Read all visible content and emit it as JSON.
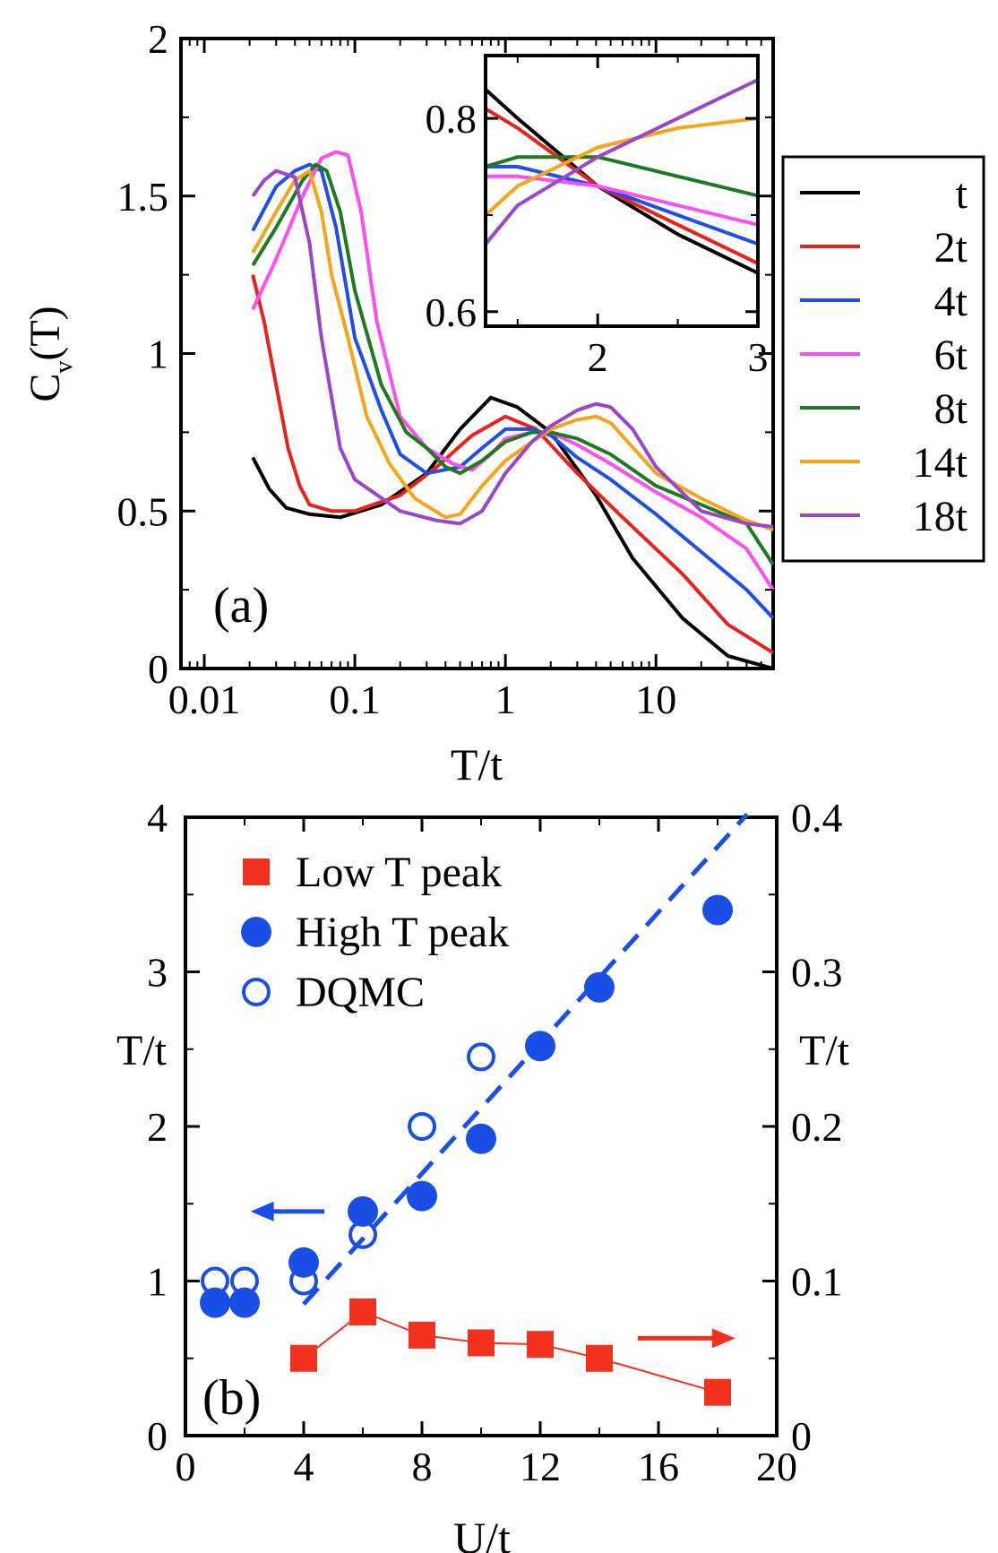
{
  "chart_data": [
    {
      "panel": "a",
      "type": "line",
      "panel_label": "(a)",
      "xlabel": "T/t",
      "ylabel_main": "C",
      "ylabel_sub": "v",
      "ylabel_tail": "(T)",
      "xscale": "log",
      "xlim": [
        0.007,
        60
      ],
      "ylim": [
        0,
        2
      ],
      "xticks": [
        {
          "v": 0.01,
          "label": "0.01"
        },
        {
          "v": 0.1,
          "label": "0.1"
        },
        {
          "v": 1,
          "label": "1"
        },
        {
          "v": 10,
          "label": "10"
        }
      ],
      "yticks": [
        {
          "v": 0,
          "label": "0"
        },
        {
          "v": 0.5,
          "label": "0.5"
        },
        {
          "v": 1,
          "label": "1"
        },
        {
          "v": 1.5,
          "label": "1.5"
        },
        {
          "v": 2,
          "label": "2"
        }
      ],
      "legend_position": "outside-right",
      "series": [
        {
          "name": "t",
          "color": "#000000",
          "points": [
            [
              0.021,
              0.67
            ],
            [
              0.027,
              0.57
            ],
            [
              0.035,
              0.51
            ],
            [
              0.05,
              0.49
            ],
            [
              0.08,
              0.48
            ],
            [
              0.15,
              0.52
            ],
            [
              0.3,
              0.62
            ],
            [
              0.5,
              0.76
            ],
            [
              0.8,
              0.86
            ],
            [
              1.2,
              0.83
            ],
            [
              2,
              0.75
            ],
            [
              4,
              0.55
            ],
            [
              7,
              0.35
            ],
            [
              15,
              0.16
            ],
            [
              30,
              0.04
            ],
            [
              60,
              0.0
            ]
          ]
        },
        {
          "name": "2t",
          "color": "#e8231c",
          "points": [
            [
              0.021,
              1.25
            ],
            [
              0.025,
              1.1
            ],
            [
              0.03,
              0.9
            ],
            [
              0.036,
              0.7
            ],
            [
              0.043,
              0.58
            ],
            [
              0.05,
              0.52
            ],
            [
              0.07,
              0.5
            ],
            [
              0.1,
              0.5
            ],
            [
              0.2,
              0.55
            ],
            [
              0.35,
              0.64
            ],
            [
              0.6,
              0.74
            ],
            [
              1,
              0.8
            ],
            [
              1.6,
              0.76
            ],
            [
              3,
              0.62
            ],
            [
              6,
              0.48
            ],
            [
              15,
              0.3
            ],
            [
              30,
              0.14
            ],
            [
              60,
              0.05
            ]
          ]
        },
        {
          "name": "4t",
          "color": "#1f4ee8",
          "points": [
            [
              0.021,
              1.39
            ],
            [
              0.03,
              1.53
            ],
            [
              0.04,
              1.58
            ],
            [
              0.05,
              1.6
            ],
            [
              0.06,
              1.58
            ],
            [
              0.075,
              1.4
            ],
            [
              0.1,
              1.05
            ],
            [
              0.15,
              0.82
            ],
            [
              0.2,
              0.68
            ],
            [
              0.3,
              0.62
            ],
            [
              0.5,
              0.64
            ],
            [
              0.7,
              0.7
            ],
            [
              1,
              0.76
            ],
            [
              1.5,
              0.76
            ],
            [
              2,
              0.74
            ],
            [
              3,
              0.67
            ],
            [
              5,
              0.6
            ],
            [
              10,
              0.49
            ],
            [
              20,
              0.37
            ],
            [
              40,
              0.25
            ],
            [
              60,
              0.16
            ]
          ]
        },
        {
          "name": "6t",
          "color": "#ff4df2",
          "points": [
            [
              0.021,
              1.14
            ],
            [
              0.03,
              1.3
            ],
            [
              0.045,
              1.5
            ],
            [
              0.06,
              1.62
            ],
            [
              0.075,
              1.64
            ],
            [
              0.09,
              1.63
            ],
            [
              0.11,
              1.45
            ],
            [
              0.14,
              1.1
            ],
            [
              0.2,
              0.8
            ],
            [
              0.3,
              0.7
            ],
            [
              0.45,
              0.65
            ],
            [
              0.6,
              0.63
            ],
            [
              0.8,
              0.68
            ],
            [
              1,
              0.73
            ],
            [
              1.5,
              0.75
            ],
            [
              2,
              0.75
            ],
            [
              3,
              0.71
            ],
            [
              5,
              0.65
            ],
            [
              10,
              0.56
            ],
            [
              20,
              0.48
            ],
            [
              40,
              0.38
            ],
            [
              60,
              0.25
            ]
          ]
        },
        {
          "name": "8t",
          "color": "#1e7a1e",
          "points": [
            [
              0.021,
              1.28
            ],
            [
              0.03,
              1.4
            ],
            [
              0.045,
              1.55
            ],
            [
              0.055,
              1.6
            ],
            [
              0.065,
              1.58
            ],
            [
              0.08,
              1.45
            ],
            [
              0.1,
              1.2
            ],
            [
              0.15,
              0.9
            ],
            [
              0.22,
              0.75
            ],
            [
              0.3,
              0.7
            ],
            [
              0.4,
              0.64
            ],
            [
              0.5,
              0.62
            ],
            [
              0.7,
              0.66
            ],
            [
              1,
              0.72
            ],
            [
              1.5,
              0.75
            ],
            [
              2,
              0.75
            ],
            [
              3,
              0.73
            ],
            [
              5,
              0.68
            ],
            [
              10,
              0.58
            ],
            [
              20,
              0.52
            ],
            [
              40,
              0.46
            ],
            [
              60,
              0.33
            ]
          ]
        },
        {
          "name": "14t",
          "color": "#f4a518",
          "points": [
            [
              0.021,
              1.32
            ],
            [
              0.03,
              1.45
            ],
            [
              0.04,
              1.55
            ],
            [
              0.05,
              1.58
            ],
            [
              0.06,
              1.45
            ],
            [
              0.07,
              1.25
            ],
            [
              0.09,
              1.05
            ],
            [
              0.12,
              0.8
            ],
            [
              0.17,
              0.65
            ],
            [
              0.25,
              0.54
            ],
            [
              0.4,
              0.48
            ],
            [
              0.5,
              0.49
            ],
            [
              0.7,
              0.58
            ],
            [
              1,
              0.66
            ],
            [
              1.5,
              0.72
            ],
            [
              2,
              0.76
            ],
            [
              3,
              0.79
            ],
            [
              4,
              0.8
            ],
            [
              5,
              0.78
            ],
            [
              10,
              0.62
            ],
            [
              20,
              0.54
            ],
            [
              40,
              0.47
            ],
            [
              60,
              0.44
            ]
          ]
        },
        {
          "name": "18t",
          "color": "#9946c9",
          "points": [
            [
              0.021,
              1.5
            ],
            [
              0.025,
              1.55
            ],
            [
              0.03,
              1.58
            ],
            [
              0.04,
              1.56
            ],
            [
              0.05,
              1.35
            ],
            [
              0.06,
              1.05
            ],
            [
              0.08,
              0.7
            ],
            [
              0.1,
              0.6
            ],
            [
              0.2,
              0.5
            ],
            [
              0.35,
              0.47
            ],
            [
              0.5,
              0.46
            ],
            [
              0.7,
              0.5
            ],
            [
              1,
              0.62
            ],
            [
              1.5,
              0.72
            ],
            [
              2,
              0.77
            ],
            [
              3,
              0.82
            ],
            [
              4,
              0.84
            ],
            [
              5,
              0.83
            ],
            [
              7,
              0.76
            ],
            [
              10,
              0.64
            ],
            [
              20,
              0.5
            ],
            [
              40,
              0.46
            ],
            [
              60,
              0.45
            ]
          ]
        }
      ],
      "inset": {
        "xscale": "linear",
        "xlim": [
          1.3,
          3
        ],
        "ylim": [
          0.585,
          0.865
        ],
        "xticks": [
          {
            "v": 2,
            "label": "2"
          },
          {
            "v": 3,
            "label": "3"
          }
        ],
        "yticks": [
          {
            "v": 0.6,
            "label": "0.6"
          },
          {
            "v": 0.8,
            "label": "0.8"
          }
        ],
        "series": [
          {
            "name": "t",
            "color": "#000000",
            "points": [
              [
                1.3,
                0.83
              ],
              [
                1.5,
                0.8
              ],
              [
                2,
                0.73
              ],
              [
                2.5,
                0.68
              ],
              [
                3,
                0.64
              ]
            ]
          },
          {
            "name": "2t",
            "color": "#e8231c",
            "points": [
              [
                1.3,
                0.81
              ],
              [
                1.5,
                0.79
              ],
              [
                2,
                0.73
              ],
              [
                2.5,
                0.69
              ],
              [
                3,
                0.65
              ]
            ]
          },
          {
            "name": "4t",
            "color": "#1f4ee8",
            "points": [
              [
                1.3,
                0.75
              ],
              [
                1.5,
                0.75
              ],
              [
                2,
                0.73
              ],
              [
                2.5,
                0.7
              ],
              [
                3,
                0.67
              ]
            ]
          },
          {
            "name": "6t",
            "color": "#ff4df2",
            "points": [
              [
                1.3,
                0.74
              ],
              [
                1.5,
                0.74
              ],
              [
                2,
                0.73
              ],
              [
                2.5,
                0.71
              ],
              [
                3,
                0.69
              ]
            ]
          },
          {
            "name": "8t",
            "color": "#1e7a1e",
            "points": [
              [
                1.3,
                0.75
              ],
              [
                1.5,
                0.76
              ],
              [
                2,
                0.76
              ],
              [
                2.5,
                0.74
              ],
              [
                3,
                0.72
              ]
            ]
          },
          {
            "name": "14t",
            "color": "#f4a518",
            "points": [
              [
                1.3,
                0.7
              ],
              [
                1.5,
                0.73
              ],
              [
                2,
                0.77
              ],
              [
                2.5,
                0.79
              ],
              [
                3,
                0.8
              ]
            ]
          },
          {
            "name": "18t",
            "color": "#9946c9",
            "points": [
              [
                1.3,
                0.67
              ],
              [
                1.5,
                0.71
              ],
              [
                2,
                0.76
              ],
              [
                2.5,
                0.8
              ],
              [
                3,
                0.84
              ]
            ]
          }
        ]
      }
    },
    {
      "panel": "b",
      "type": "scatter",
      "panel_label": "(b)",
      "xlabel": "U/t",
      "ylabel_left": "T/t",
      "ylabel_right": "T/t",
      "xlim": [
        0,
        20
      ],
      "ylim_left": [
        0,
        4
      ],
      "ylim_right": [
        0,
        0.4
      ],
      "xticks": [
        {
          "v": 0,
          "label": "0"
        },
        {
          "v": 4,
          "label": "4"
        },
        {
          "v": 8,
          "label": "8"
        },
        {
          "v": 12,
          "label": "12"
        },
        {
          "v": 16,
          "label": "16"
        },
        {
          "v": 20,
          "label": "20"
        }
      ],
      "yticks_left": [
        {
          "v": 0,
          "label": "0"
        },
        {
          "v": 1,
          "label": "1"
        },
        {
          "v": 2,
          "label": "2"
        },
        {
          "v": 3,
          "label": "3"
        },
        {
          "v": 4,
          "label": "4"
        }
      ],
      "yticks_right": [
        {
          "v": 0,
          "label": "0"
        },
        {
          "v": 0.1,
          "label": "0.1"
        },
        {
          "v": 0.2,
          "label": "0.2"
        },
        {
          "v": 0.3,
          "label": "0.3"
        },
        {
          "v": 0.4,
          "label": "0.4"
        }
      ],
      "legend_position": "top-left",
      "series": [
        {
          "name": "Low T peak",
          "marker": "filled-square",
          "color": "#f2311e",
          "axis": "right",
          "connected": true,
          "x": [
            4,
            6,
            8,
            10,
            12,
            14,
            18
          ],
          "y": [
            0.05,
            0.08,
            0.065,
            0.06,
            0.059,
            0.05,
            0.028
          ]
        },
        {
          "name": "High T peak",
          "marker": "filled-circle",
          "color": "#1a4fe6",
          "axis": "left",
          "connected": false,
          "x": [
            1,
            2,
            4,
            6,
            8,
            10,
            12,
            14,
            18
          ],
          "y": [
            0.86,
            0.86,
            1.12,
            1.45,
            1.55,
            1.92,
            2.52,
            2.9,
            3.4
          ]
        },
        {
          "name": "DQMC",
          "marker": "open-circle",
          "color": "#1a4fe6",
          "axis": "left",
          "connected": false,
          "x": [
            1,
            2,
            4,
            6,
            8,
            10
          ],
          "y": [
            1.0,
            1.0,
            1.0,
            1.3,
            2.0,
            2.45
          ]
        }
      ],
      "fit_line": {
        "color": "#1a4fe6",
        "style": "dashed",
        "x": [
          4,
          19
        ],
        "y": [
          0.85,
          4.02
        ]
      },
      "arrows": [
        {
          "color": "#1a4fe6",
          "direction": "left",
          "points_to": "left axis",
          "x": [
            4.7,
            2.2
          ],
          "y": [
            1.45,
            1.45
          ]
        },
        {
          "color": "#f2311e",
          "direction": "right",
          "points_to": "right axis",
          "x": [
            15.3,
            18.6
          ],
          "y": [
            0.063,
            0.063
          ]
        }
      ]
    }
  ]
}
